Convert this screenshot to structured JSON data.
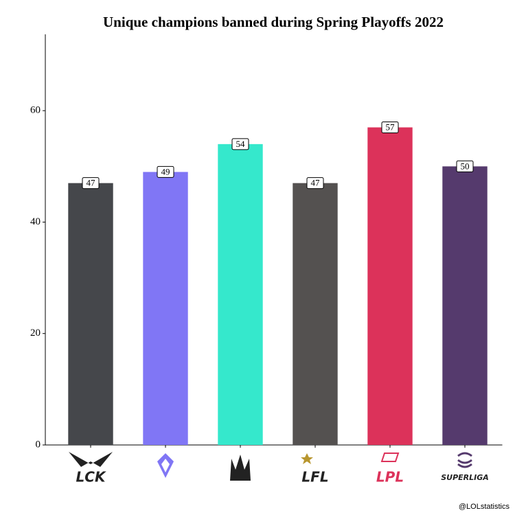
{
  "chart_data": {
    "type": "bar",
    "title": "Unique champions banned during Spring Playoffs 2022",
    "categories": [
      "LCK",
      null,
      null,
      "LFL",
      "LPL",
      "SUPERLIGA"
    ],
    "values": [
      47,
      49,
      54,
      47,
      57,
      50
    ],
    "colors": [
      "#45474b",
      "#8076f5",
      "#35e8cc",
      "#545150",
      "#dc325a",
      "#553a6d"
    ],
    "ylim": [
      0,
      73.7
    ],
    "yticks": [
      0,
      20,
      40,
      60
    ],
    "source": "@LOLstatistics"
  }
}
